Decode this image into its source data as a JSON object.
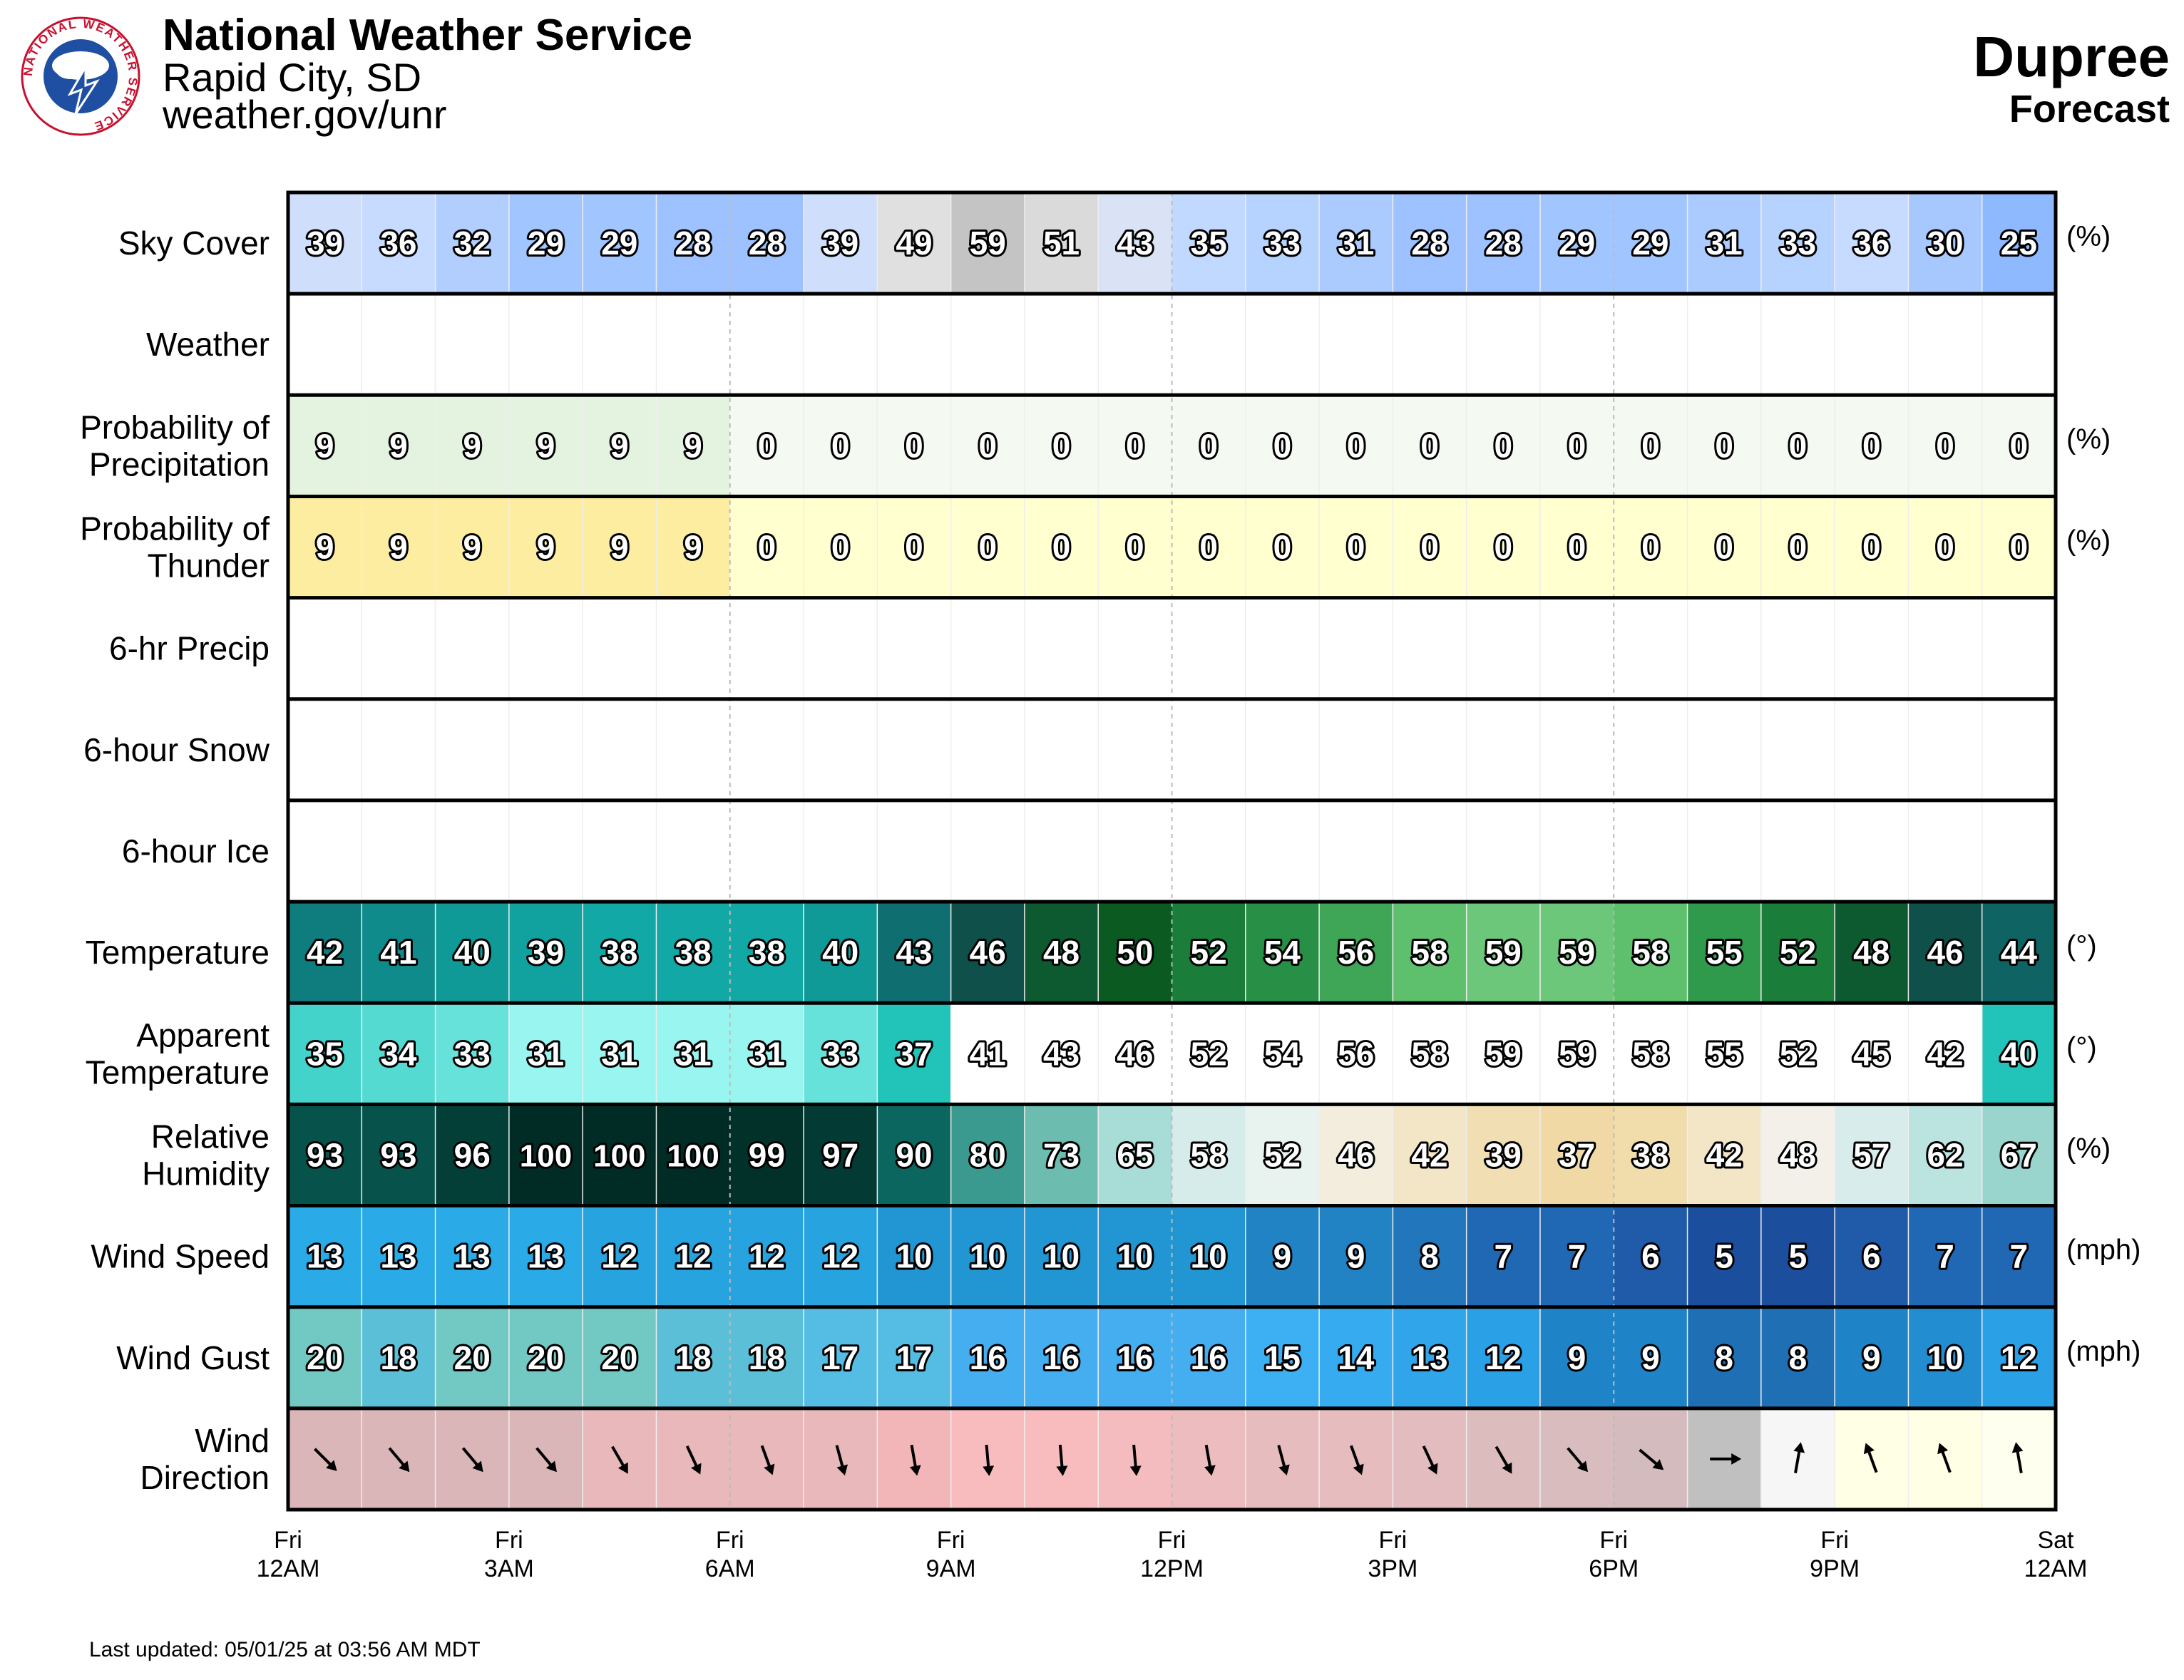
{
  "header": {
    "org": "National Weather Service",
    "office": "Rapid City, SD",
    "site": "weather.gov/unr",
    "location": "Dupree",
    "subtitle": "Forecast",
    "logo_text": "NATIONAL WEATHER SERVICE"
  },
  "footer": {
    "updated": "Last updated: 05/01/25 at 03:56 AM MDT"
  },
  "chart_data": {
    "type": "table",
    "x_labels": [
      {
        "day": "Fri",
        "time": "12AM"
      },
      {
        "day": "Fri",
        "time": "3AM"
      },
      {
        "day": "Fri",
        "time": "6AM"
      },
      {
        "day": "Fri",
        "time": "9AM"
      },
      {
        "day": "Fri",
        "time": "12PM"
      },
      {
        "day": "Fri",
        "time": "3PM"
      },
      {
        "day": "Fri",
        "time": "6PM"
      },
      {
        "day": "Fri",
        "time": "9PM"
      },
      {
        "day": "Sat",
        "time": "12AM"
      }
    ],
    "rows": [
      {
        "label": [
          "Sky Cover"
        ],
        "unit": "(%)",
        "scale": "sky",
        "values": [
          39,
          36,
          32,
          29,
          29,
          28,
          28,
          39,
          49,
          59,
          51,
          43,
          35,
          33,
          31,
          28,
          28,
          29,
          29,
          31,
          33,
          36,
          30,
          25
        ]
      },
      {
        "label": [
          "Weather"
        ],
        "unit": "",
        "scale": "blank",
        "values": []
      },
      {
        "label": [
          "Probability of",
          "Precipitation"
        ],
        "unit": "(%)",
        "scale": "pop",
        "values": [
          9,
          9,
          9,
          9,
          9,
          9,
          0,
          0,
          0,
          0,
          0,
          0,
          0,
          0,
          0,
          0,
          0,
          0,
          0,
          0,
          0,
          0,
          0,
          0
        ]
      },
      {
        "label": [
          "Probability of",
          "Thunder"
        ],
        "unit": "(%)",
        "scale": "thunder",
        "values": [
          9,
          9,
          9,
          9,
          9,
          9,
          0,
          0,
          0,
          0,
          0,
          0,
          0,
          0,
          0,
          0,
          0,
          0,
          0,
          0,
          0,
          0,
          0,
          0
        ]
      },
      {
        "label": [
          "6-hr Precip"
        ],
        "unit": "",
        "scale": "blank",
        "values": []
      },
      {
        "label": [
          "6-hour Snow"
        ],
        "unit": "",
        "scale": "blank",
        "values": []
      },
      {
        "label": [
          "6-hour Ice"
        ],
        "unit": "",
        "scale": "blank",
        "values": []
      },
      {
        "label": [
          "Temperature"
        ],
        "unit": "(°)",
        "scale": "temp",
        "values": [
          42,
          41,
          40,
          39,
          38,
          38,
          38,
          40,
          43,
          46,
          48,
          50,
          52,
          54,
          56,
          58,
          59,
          59,
          58,
          55,
          52,
          48,
          46,
          44
        ]
      },
      {
        "label": [
          "Apparent",
          "Temperature"
        ],
        "unit": "(°)",
        "scale": "apparent",
        "values": [
          35,
          34,
          33,
          31,
          31,
          31,
          31,
          33,
          37,
          41,
          43,
          46,
          52,
          54,
          56,
          58,
          59,
          59,
          58,
          55,
          52,
          45,
          42,
          40
        ]
      },
      {
        "label": [
          "Relative",
          "Humidity"
        ],
        "unit": "(%)",
        "scale": "rh",
        "values": [
          93,
          93,
          96,
          100,
          100,
          100,
          99,
          97,
          90,
          80,
          73,
          65,
          58,
          52,
          46,
          42,
          39,
          37,
          38,
          42,
          48,
          57,
          62,
          67
        ]
      },
      {
        "label": [
          "Wind Speed"
        ],
        "unit": "(mph)",
        "scale": "wind",
        "values": [
          13,
          13,
          13,
          13,
          12,
          12,
          12,
          12,
          10,
          10,
          10,
          10,
          10,
          9,
          9,
          8,
          7,
          7,
          6,
          5,
          5,
          6,
          7,
          7
        ]
      },
      {
        "label": [
          "Wind Gust"
        ],
        "unit": "(mph)",
        "scale": "gust",
        "values": [
          20,
          18,
          20,
          20,
          20,
          18,
          18,
          17,
          17,
          16,
          16,
          16,
          16,
          15,
          14,
          13,
          12,
          9,
          9,
          8,
          8,
          9,
          10,
          12
        ]
      },
      {
        "label": [
          "Wind",
          "Direction"
        ],
        "unit": "",
        "scale": "dir",
        "values": [
          315,
          320,
          320,
          320,
          330,
          335,
          340,
          345,
          350,
          355,
          355,
          355,
          350,
          345,
          340,
          335,
          330,
          320,
          310,
          270,
          190,
          160,
          160,
          170
        ]
      }
    ]
  }
}
